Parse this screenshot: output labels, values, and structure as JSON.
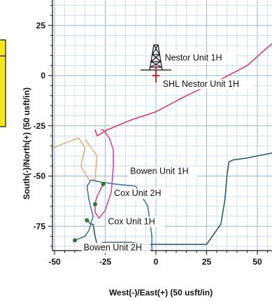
{
  "chart_data": {
    "type": "line",
    "xlabel": "West(-)/East(+) (50 usft/in)",
    "ylabel": "South(-)/North(+) (50 usft/in)",
    "xlim": [
      -53,
      60
    ],
    "ylim": [
      -96,
      36
    ],
    "xticks": [
      -50,
      -25,
      0,
      25,
      50
    ],
    "yticks": [
      25,
      0,
      -25,
      -50,
      -75
    ],
    "grid": true,
    "colors": {
      "grid_minor": "#b9d7ef",
      "grid_major": "#8cbbe3",
      "nestor": "#d63b63",
      "bowen1h": "#e8a063",
      "cox2h": "#e0438d",
      "cox1h": "#24505e",
      "bowen2h": "#3c6f92",
      "marker_green": "#2f7d30",
      "shl_red": "#e02020"
    },
    "series": [
      {
        "name": "Nestor Unit 1H",
        "x": [
          -30,
          -29,
          -24,
          -12,
          0,
          15,
          30,
          45,
          55,
          60
        ],
        "y": [
          -27,
          -30,
          -27,
          -22,
          -18,
          -10,
          -3,
          5,
          14,
          18
        ]
      },
      {
        "name": "Bowen Unit 1H",
        "x": [
          -53,
          -46,
          -38,
          -35,
          -37,
          -33,
          -30,
          -29,
          -34,
          -35
        ],
        "y": [
          -37,
          -34,
          -31,
          -36,
          -45,
          -52,
          -52,
          -40,
          -33,
          -32
        ]
      },
      {
        "name": "Cox Unit 2H",
        "x": [
          -26,
          -27,
          -29,
          -30,
          -30,
          -28,
          -25,
          -22,
          -21,
          -21,
          -23,
          -26,
          -27
        ],
        "y": [
          -54,
          -56,
          -60,
          -64,
          -68,
          -71,
          -67,
          -58,
          -45,
          -37,
          -31,
          -27,
          -27
        ]
      },
      {
        "name": "Cox Unit 1H",
        "x": [
          -34,
          -33,
          -32,
          -31,
          -30,
          -29,
          -28,
          -26,
          -22,
          -18,
          -12,
          -5,
          10,
          25,
          32,
          34,
          35,
          36,
          38,
          45,
          55,
          60
        ],
        "y": [
          -72,
          -73,
          -74,
          -74,
          -80,
          -84,
          -84,
          -83,
          -83,
          -83,
          -83,
          -84,
          -84,
          -84,
          -74,
          -62,
          -50,
          -43,
          -42,
          -41,
          -39,
          -38
        ]
      },
      {
        "name": "Bowen Unit 2H",
        "x": [
          -40,
          -35,
          -33,
          -31,
          -33,
          -34,
          -32,
          -27,
          -20,
          -10,
          -4,
          -2,
          -2
        ],
        "y": [
          -82,
          -80,
          -77,
          -70,
          -62,
          -55,
          -52,
          -53,
          -54,
          -55,
          -65,
          -80,
          -96
        ]
      }
    ],
    "markers": [
      {
        "label": "Cox Unit 2H",
        "x": -30,
        "y": -64
      },
      {
        "label": "Bowen Unit 1H",
        "x": -26,
        "y": -54
      },
      {
        "label": "Cox Unit 1H",
        "x": -34,
        "y": -72
      },
      {
        "label": "Bowen Unit 2H",
        "x": -40,
        "y": -82
      }
    ],
    "shl": {
      "label": "SHL Nestor Unit 1H",
      "x": 0,
      "y": 0
    },
    "annotations": [
      {
        "text": "Nestor Unit 1H",
        "x": 4,
        "y": 7.5
      },
      {
        "text": "SHL Nestor Unit 1H",
        "x": 3,
        "y": -5.5
      },
      {
        "text": "Bowen Unit 1H",
        "x": -13,
        "y": -49
      },
      {
        "text": "Cox Unit 2H",
        "x": -21,
        "y": -60
      },
      {
        "text": "Cox Unit 1H",
        "x": -24,
        "y": -74
      },
      {
        "text": "Bowen Unit 2H",
        "x": -36,
        "y": -87
      }
    ]
  }
}
